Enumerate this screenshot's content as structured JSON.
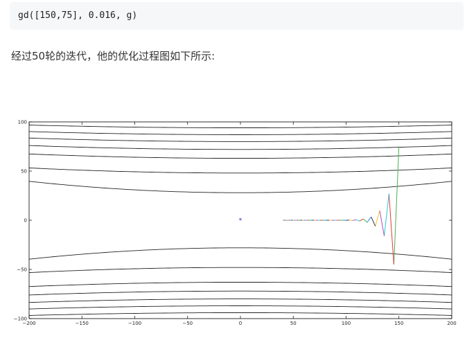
{
  "code": {
    "text": "gd([150,75], 0.016, g)"
  },
  "paragraph": {
    "text": "经过50轮的迭代，他的优化过程图如下所示:"
  },
  "chart_data": {
    "type": "line",
    "title": "",
    "xlabel": "",
    "ylabel": "",
    "xlim": [
      -200,
      200
    ],
    "ylim": [
      -100,
      100
    ],
    "x_ticks": [
      -200,
      -150,
      -100,
      -50,
      0,
      50,
      100,
      150,
      200
    ],
    "y_ticks": [
      -100,
      -50,
      0,
      50,
      100
    ],
    "x_tick_labels": [
      "−200",
      "−150",
      "−100",
      "−50",
      "0",
      "50",
      "100",
      "150",
      "200"
    ],
    "y_tick_labels": [
      "−100",
      "−50",
      "0",
      "50",
      "100"
    ],
    "grid": false,
    "contour_levels": [
      {
        "y0": 28,
        "a": 0.00029
      },
      {
        "y0": 48,
        "a": 0.00013
      },
      {
        "y0": 63,
        "a": 0.00011
      },
      {
        "y0": 72,
        "a": 0.0001
      },
      {
        "y0": 80,
        "a": 9e-05
      },
      {
        "y0": 87,
        "a": 8e-05
      },
      {
        "y0": 94,
        "a": 7e-05
      }
    ],
    "minimum_marker": {
      "x": 0,
      "y": 0,
      "color": "#1f1fbf"
    },
    "path": {
      "x": [
        150,
        145.2,
        140.6,
        136.1,
        131.8,
        127.7,
        123.7,
        119.9,
        116.2,
        112.7,
        109.3,
        106.0,
        102.9,
        99.9,
        97.0,
        94.2,
        91.5,
        88.9,
        86.4,
        84.0,
        81.7,
        79.5,
        77.4,
        75.3,
        73.3,
        71.4,
        69.6,
        67.8,
        66.1,
        64.4,
        62.8,
        61.3,
        59.8,
        58.4,
        57.0,
        55.7,
        54.4,
        53.2,
        52.0,
        50.8,
        49.7,
        48.6,
        47.5,
        46.5,
        45.5,
        44.5,
        43.6,
        42.7,
        41.8,
        41.0,
        40.2
      ],
      "y": [
        75,
        -45,
        27,
        -16,
        10,
        -6,
        3.5,
        -2.1,
        1.3,
        -0.8,
        0.5,
        -0.3,
        0.2,
        -0.1,
        0.07,
        -0.04,
        0.03,
        -0.02,
        0.01,
        -0.01,
        0,
        0,
        0,
        0,
        0,
        0,
        0,
        0,
        0,
        0,
        0,
        0,
        0,
        0,
        0,
        0,
        0,
        0,
        0,
        0,
        0,
        0,
        0,
        0,
        0,
        0,
        0,
        0,
        0,
        0,
        0
      ]
    },
    "path_colors": [
      "#4caf50",
      "#e53935",
      "#26c6da",
      "#ab47bc",
      "#fbc02d",
      "#333333",
      "#1e88e5"
    ],
    "contour_color": "#222222"
  }
}
